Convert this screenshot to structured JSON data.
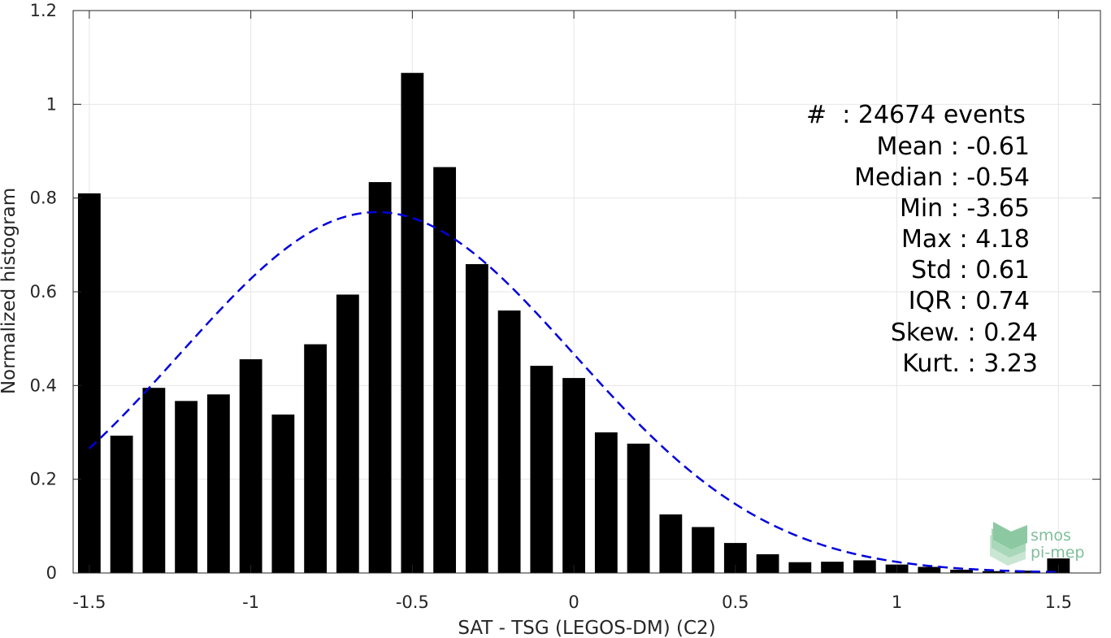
{
  "chart_data": {
    "type": "bar",
    "xlabel": "SAT - TSG (LEGOS-DM) (C2)",
    "ylabel": "Normalized histogram",
    "xlim": [
      -1.55,
      1.63
    ],
    "ylim": [
      0,
      1.2
    ],
    "grid": true,
    "x_ticks": [
      -1.5,
      -1,
      -0.5,
      0,
      0.5,
      1,
      1.5
    ],
    "x_tick_labels": [
      "-1.5",
      "-1",
      "-0.5",
      "0",
      "0.5",
      "1",
      "1.5"
    ],
    "y_ticks": [
      0,
      0.2,
      0.4,
      0.6,
      0.8,
      1,
      1.2
    ],
    "y_tick_labels": [
      "0",
      "0.2",
      "0.4",
      "0.6",
      "0.8",
      "1",
      "1.2"
    ],
    "bar_width": 0.07,
    "bins": [
      -1.5,
      -1.4,
      -1.3,
      -1.2,
      -1.1,
      -1.0,
      -0.9,
      -0.8,
      -0.7,
      -0.6,
      -0.5,
      -0.4,
      -0.3,
      -0.2,
      -0.1,
      0.0,
      0.1,
      0.2,
      0.3,
      0.4,
      0.5,
      0.6,
      0.7,
      0.8,
      0.9,
      1.0,
      1.1,
      1.2,
      1.3,
      1.4,
      1.5
    ],
    "values": [
      0.81,
      0.293,
      0.395,
      0.367,
      0.381,
      0.456,
      0.338,
      0.488,
      0.594,
      0.834,
      1.067,
      0.866,
      0.659,
      0.56,
      0.442,
      0.416,
      0.3,
      0.276,
      0.125,
      0.098,
      0.064,
      0.04,
      0.023,
      0.024,
      0.027,
      0.018,
      0.013,
      0.007,
      0.004,
      0.005,
      0.031
    ],
    "bar_color": "#000000",
    "fit_curve": {
      "style": "dashed",
      "color": "#0000dd",
      "mean": -0.61,
      "std": 0.61,
      "peak": 0.77,
      "x_range": [
        -1.5,
        1.5
      ]
    },
    "stats": [
      {
        "label": "#  : 24674 events"
      },
      {
        "label": "Mean : -0.61"
      },
      {
        "label": "Median : -0.54"
      },
      {
        "label": "Min : -3.65"
      },
      {
        "label": "Max : 4.18"
      },
      {
        "label": "Std : 0.61"
      },
      {
        "label": "IQR : 0.74"
      },
      {
        "label": "Skew. : 0.24"
      },
      {
        "label": "Kurt. : 3.23"
      }
    ]
  },
  "logo": {
    "line1": "smos",
    "line2": "pi-mep",
    "color": "#7fbf9a"
  }
}
